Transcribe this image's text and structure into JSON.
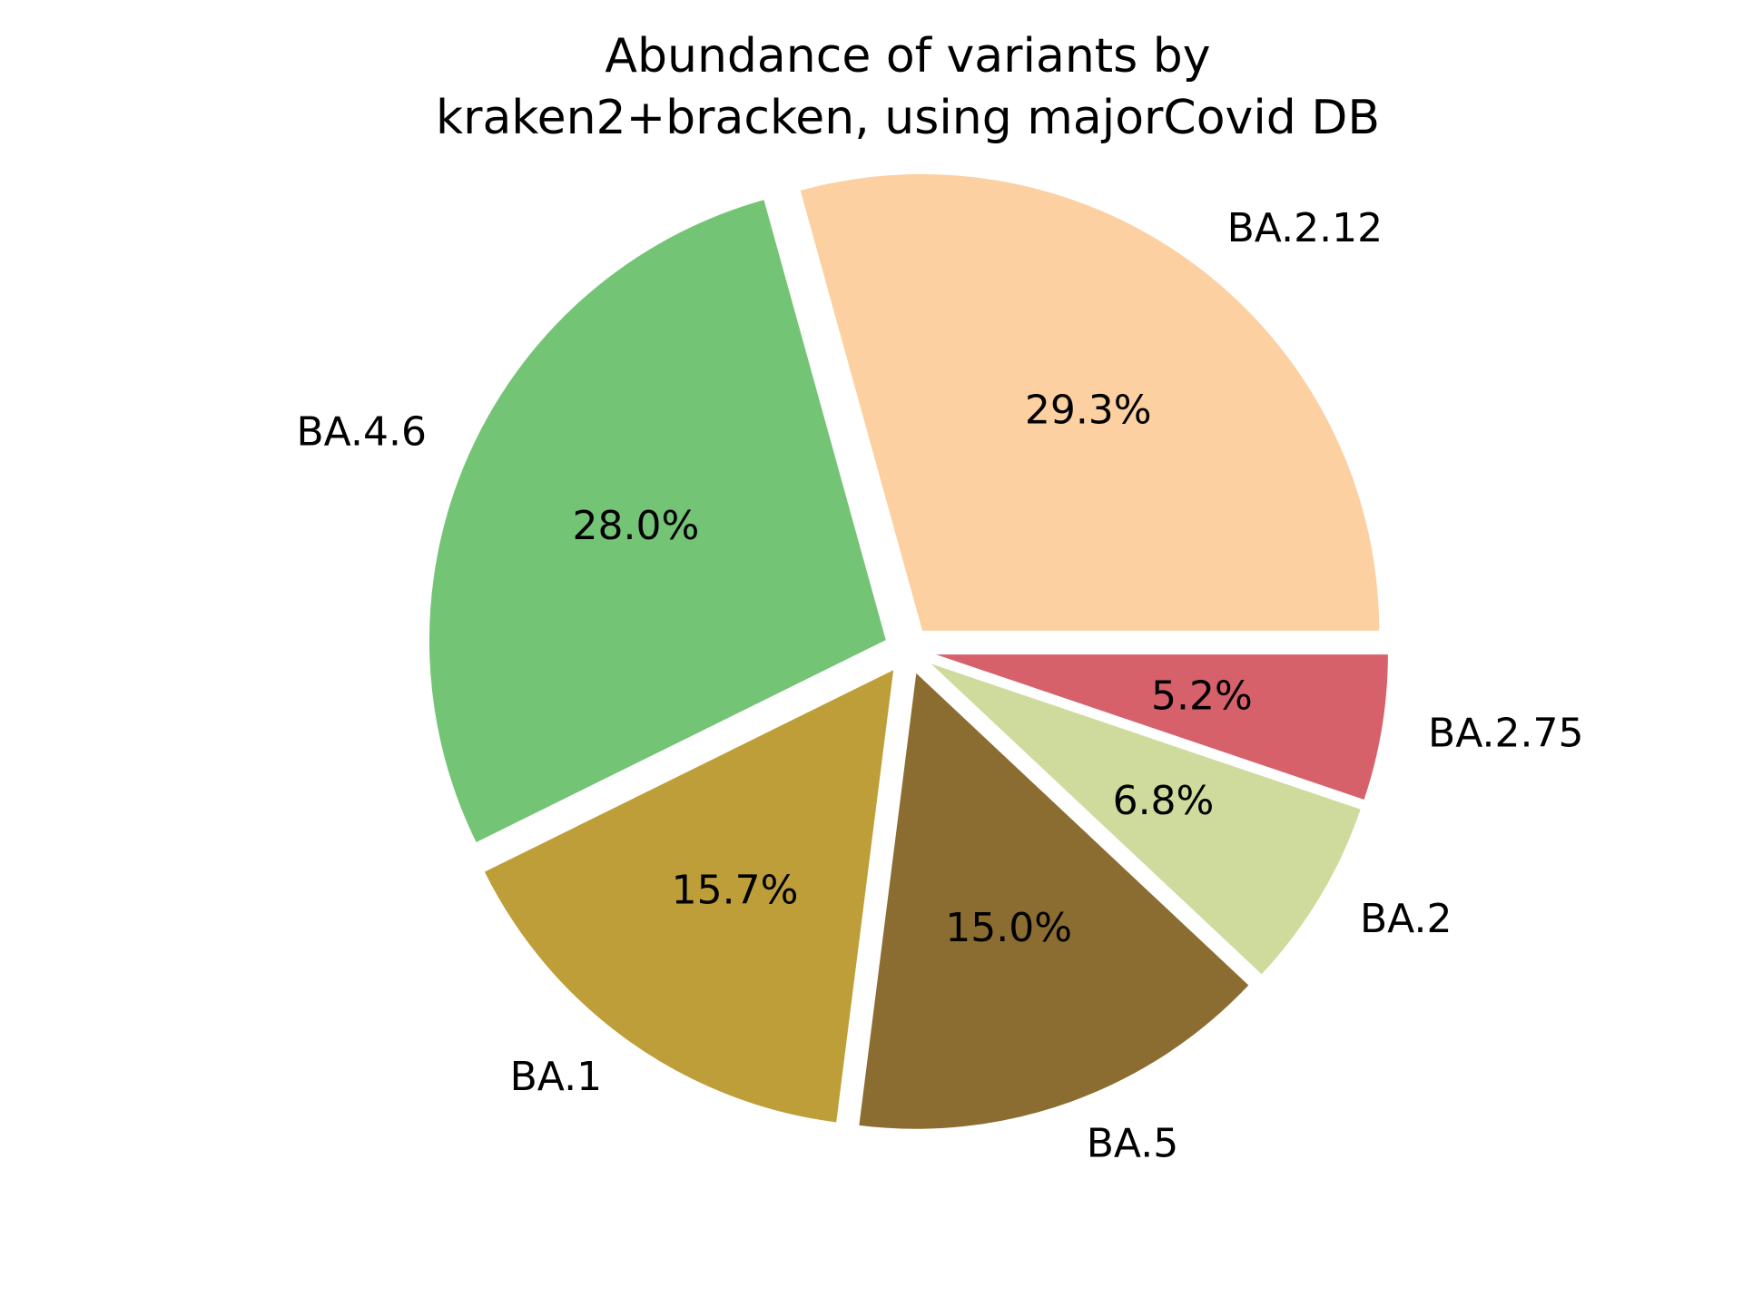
{
  "chart_data": {
    "type": "pie",
    "title_lines": [
      "Abundance of variants by",
      "kraken2+bracken, using majorCovid DB"
    ],
    "slices": [
      {
        "label": "BA.2.12",
        "value": 29.3,
        "pct_label": "29.3%",
        "color": "#FCD0A1"
      },
      {
        "label": "BA.4.6",
        "value": 28.0,
        "pct_label": "28.0%",
        "color": "#74C476"
      },
      {
        "label": "BA.1",
        "value": 15.7,
        "pct_label": "15.7%",
        "color": "#BD9E39"
      },
      {
        "label": "BA.5",
        "value": 15.0,
        "pct_label": "15.0%",
        "color": "#8C6D31"
      },
      {
        "label": "BA.2",
        "value": 6.8,
        "pct_label": "6.8%",
        "color": "#CEDB9C"
      },
      {
        "label": "BA.2.75",
        "value": 5.2,
        "pct_label": "5.2%",
        "color": "#D6616B"
      }
    ],
    "start_angle_deg": 0,
    "direction": "counterclockwise",
    "exploded": true,
    "legend": "none"
  }
}
